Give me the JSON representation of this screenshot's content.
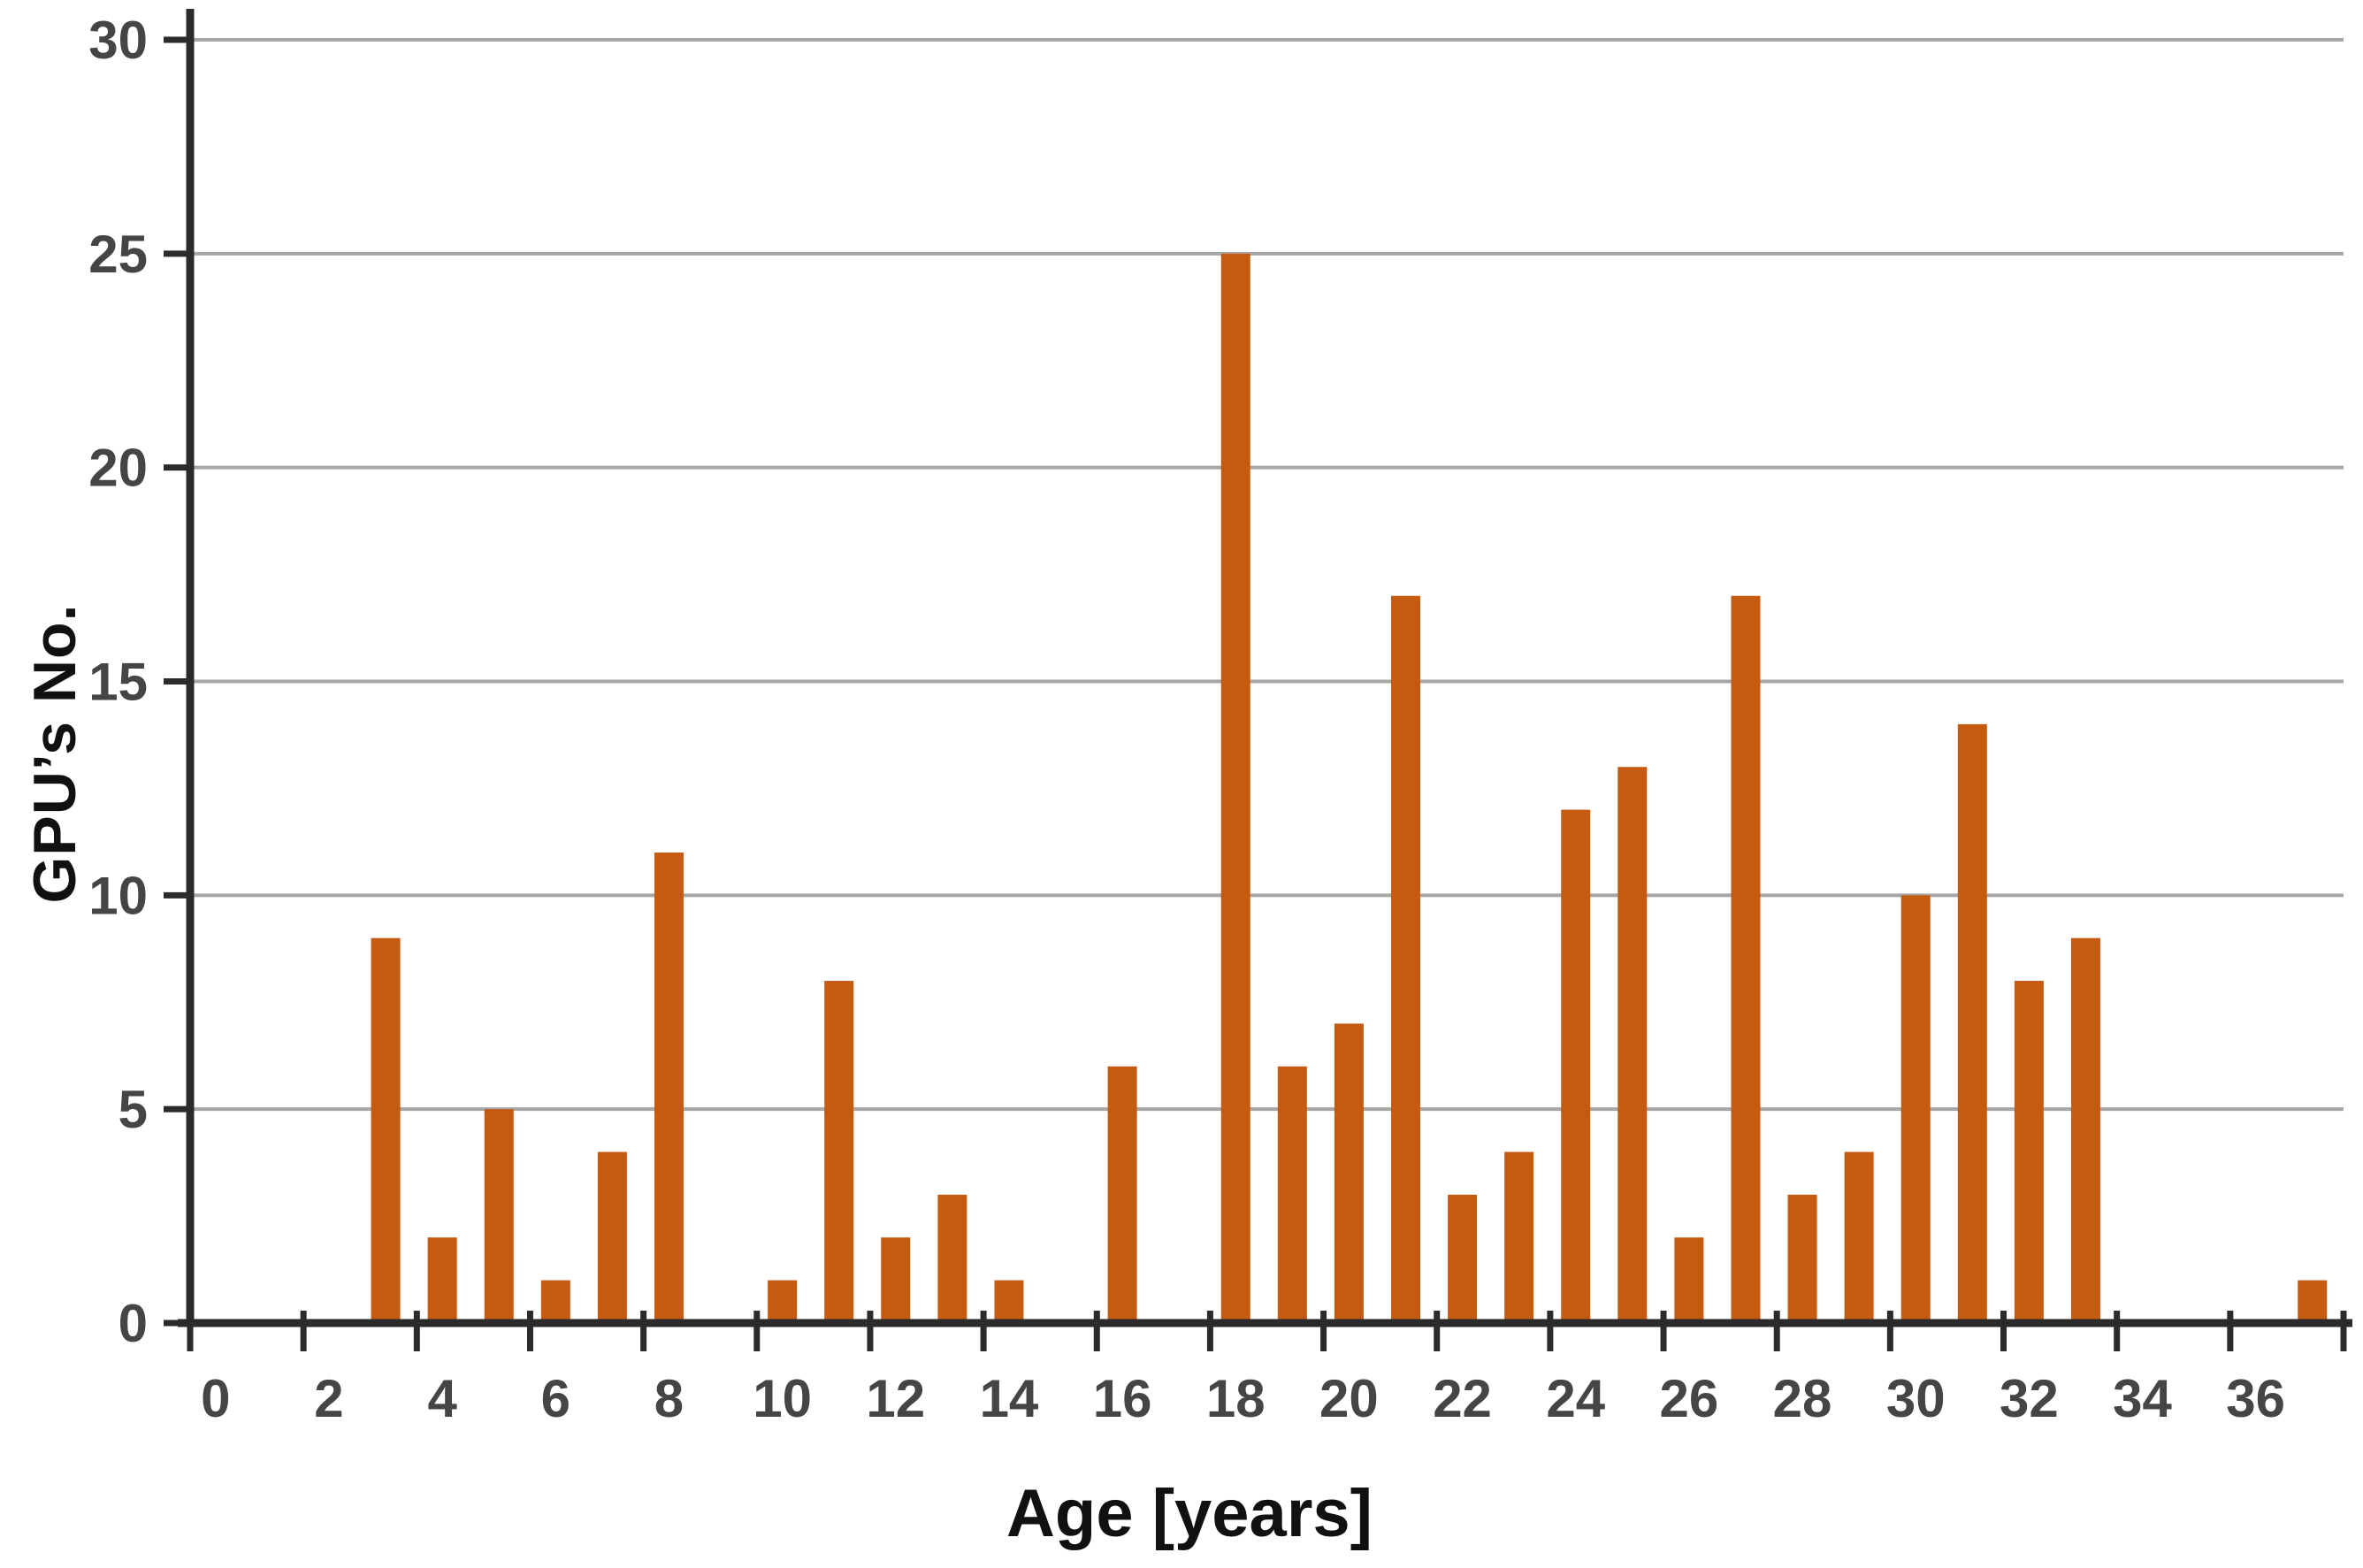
{
  "chart_data": {
    "type": "bar",
    "title": "",
    "xlabel": "Age [years]",
    "ylabel": "GPU’s No.",
    "xlim": [
      0,
      38
    ],
    "ylim": [
      0,
      30
    ],
    "grid": "horizontal",
    "legend": "none",
    "points": [
      {
        "age": 3,
        "count": 9
      },
      {
        "age": 4,
        "count": 2
      },
      {
        "age": 5,
        "count": 5
      },
      {
        "age": 6,
        "count": 1
      },
      {
        "age": 7,
        "count": 4
      },
      {
        "age": 8,
        "count": 11
      },
      {
        "age": 10,
        "count": 1
      },
      {
        "age": 11,
        "count": 8
      },
      {
        "age": 12,
        "count": 2
      },
      {
        "age": 13,
        "count": 3
      },
      {
        "age": 14,
        "count": 1
      },
      {
        "age": 16,
        "count": 6
      },
      {
        "age": 18,
        "count": 25
      },
      {
        "age": 19,
        "count": 6
      },
      {
        "age": 20,
        "count": 7
      },
      {
        "age": 21,
        "count": 17
      },
      {
        "age": 22,
        "count": 3
      },
      {
        "age": 23,
        "count": 4
      },
      {
        "age": 24,
        "count": 12
      },
      {
        "age": 25,
        "count": 13
      },
      {
        "age": 26,
        "count": 2
      },
      {
        "age": 27,
        "count": 17
      },
      {
        "age": 28,
        "count": 3
      },
      {
        "age": 29,
        "count": 4
      },
      {
        "age": 30,
        "count": 10
      },
      {
        "age": 31,
        "count": 14
      },
      {
        "age": 32,
        "count": 8
      },
      {
        "age": 33,
        "count": 9
      },
      {
        "age": 37,
        "count": 1
      }
    ],
    "x_ticks": [
      {
        "v": 0,
        "label": "0"
      },
      {
        "v": 2,
        "label": "2"
      },
      {
        "v": 4,
        "label": "4"
      },
      {
        "v": 6,
        "label": "6"
      },
      {
        "v": 8,
        "label": "8"
      },
      {
        "v": 10,
        "label": "10"
      },
      {
        "v": 12,
        "label": "12"
      },
      {
        "v": 14,
        "label": "14"
      },
      {
        "v": 16,
        "label": "16"
      },
      {
        "v": 18,
        "label": "18"
      },
      {
        "v": 20,
        "label": "20"
      },
      {
        "v": 22,
        "label": "22"
      },
      {
        "v": 24,
        "label": "24"
      },
      {
        "v": 26,
        "label": "26"
      },
      {
        "v": 28,
        "label": "28"
      },
      {
        "v": 30,
        "label": "30"
      },
      {
        "v": 32,
        "label": "32"
      },
      {
        "v": 34,
        "label": "34"
      },
      {
        "v": 36,
        "label": "36"
      },
      {
        "v": 38,
        "label": ""
      }
    ],
    "y_ticks": [
      {
        "v": 0,
        "label": "0"
      },
      {
        "v": 5,
        "label": "5"
      },
      {
        "v": 10,
        "label": "10"
      },
      {
        "v": 15,
        "label": "15"
      },
      {
        "v": 20,
        "label": "20"
      },
      {
        "v": 25,
        "label": "25"
      },
      {
        "v": 30,
        "label": "30"
      }
    ],
    "colors": {
      "bar": "#C55A11",
      "gridline": "#A6A6A6",
      "axis": "#2B2B2B",
      "tick_label": "#454545",
      "axis_title": "#111111",
      "background": "#FFFFFF"
    }
  }
}
